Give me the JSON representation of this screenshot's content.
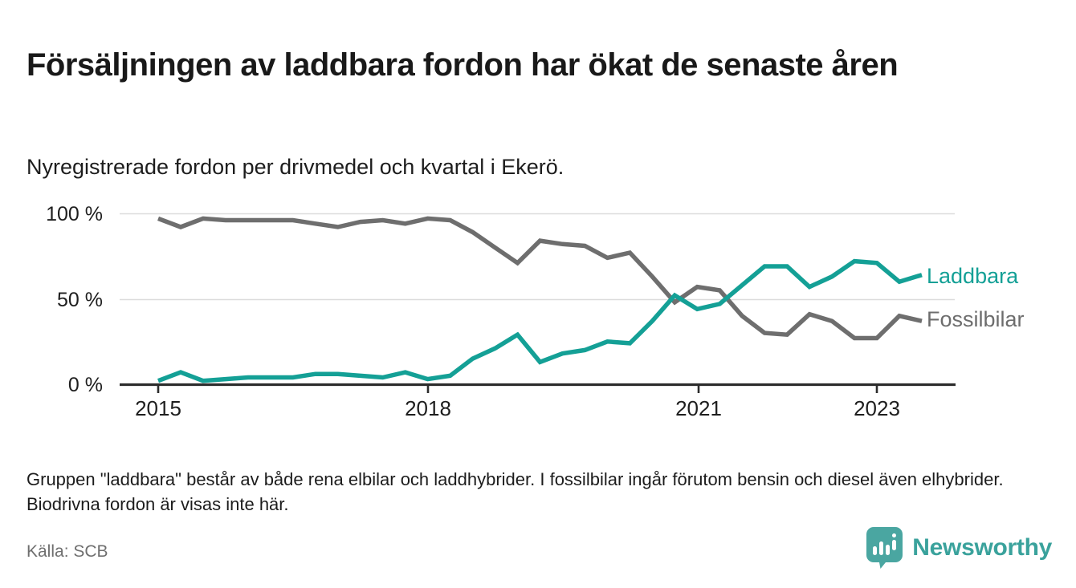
{
  "header": {
    "title": "Försäljningen av laddbara fordon har ökat de senaste åren",
    "subtitle": "Nyregistrerade fordon per drivmedel och kvartal i Ekerö."
  },
  "chart_data": {
    "type": "line",
    "x_unit": "quarter",
    "x_labels": [
      "2015-Q1",
      "2015-Q2",
      "2015-Q3",
      "2015-Q4",
      "2016-Q1",
      "2016-Q2",
      "2016-Q3",
      "2016-Q4",
      "2017-Q1",
      "2017-Q2",
      "2017-Q3",
      "2017-Q4",
      "2018-Q1",
      "2018-Q2",
      "2018-Q3",
      "2018-Q4",
      "2019-Q1",
      "2019-Q2",
      "2019-Q3",
      "2019-Q4",
      "2020-Q1",
      "2020-Q2",
      "2020-Q3",
      "2020-Q4",
      "2021-Q1",
      "2021-Q2",
      "2021-Q3",
      "2021-Q4",
      "2022-Q1",
      "2022-Q2",
      "2022-Q3",
      "2022-Q4",
      "2023-Q1",
      "2023-Q2",
      "2023-Q3"
    ],
    "series": [
      {
        "name": "Laddbara",
        "color": "#14a096",
        "values": [
          2,
          7,
          2,
          3,
          4,
          4,
          4,
          6,
          6,
          5,
          4,
          7,
          3,
          5,
          15,
          21,
          29,
          13,
          18,
          20,
          25,
          24,
          37,
          52,
          44,
          47,
          58,
          69,
          69,
          57,
          63,
          72,
          71,
          60,
          64
        ]
      },
      {
        "name": "Fossilbilar",
        "color": "#6e6e6e",
        "values": [
          97,
          92,
          97,
          96,
          96,
          96,
          96,
          94,
          92,
          95,
          96,
          94,
          97,
          96,
          89,
          80,
          71,
          84,
          82,
          81,
          74,
          77,
          63,
          48,
          57,
          55,
          40,
          30,
          29,
          41,
          37,
          27,
          27,
          40,
          37
        ]
      }
    ],
    "ylim": [
      0,
      100
    ],
    "ytick_labels": [
      "100 %",
      "50 %",
      "0 %"
    ],
    "xticks": [
      {
        "label": "2015",
        "quarter_index": 0
      },
      {
        "label": "2018",
        "quarter_index": 12
      },
      {
        "label": "2021",
        "quarter_index": 24
      },
      {
        "label": "2023",
        "quarter_index": 32
      }
    ],
    "grid": "horizontal",
    "legend_position": "right-end-labels"
  },
  "footer": {
    "note": "Gruppen \"laddbara\" består av både rena elbilar och laddhybrider. I fossilbilar ingår förutom bensin och diesel även elhybrider. Biodrivna fordon är visas inte här.",
    "source": "Källa: SCB",
    "brand": "Newsworthy"
  },
  "colors": {
    "accent_teal": "#14a096",
    "line_gray": "#6e6e6e",
    "gridline": "#dcdcdc",
    "axis": "#2d2d2d",
    "logo_teal": "#4aa6a1",
    "brand_text_teal": "#3aa29c"
  }
}
